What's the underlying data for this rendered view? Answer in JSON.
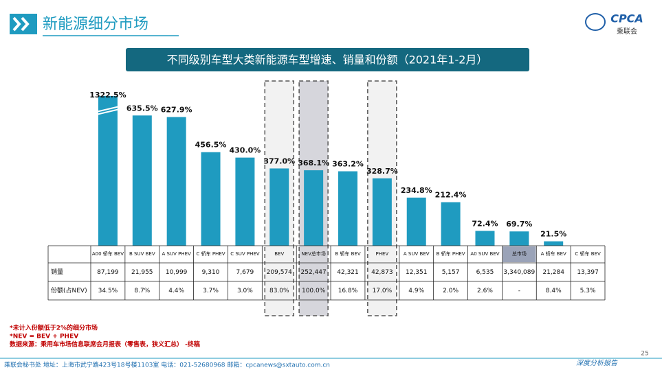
{
  "header": {
    "title": "新能源细分市场",
    "logo": "CPCA",
    "logo_sub": "乘联会"
  },
  "chart_data": {
    "type": "bar",
    "title": "不同级别车型大类新能源车型增速、销量和份额（2021年1-2月）",
    "categories": [
      "A00 轿车 BEV",
      "B SUV BEV",
      "A SUV PHEV",
      "C 轿车 PHEV",
      "C SUV PHEV",
      "BEV",
      "NEV总市场",
      "B 轿车 BEV",
      "PHEV",
      "A SUV BEV",
      "B 轿车 PHEV",
      "A0 SUV BEV",
      "总市场",
      "A 轿车 BEV",
      "C 轿车 BEV"
    ],
    "values": [
      1322.5,
      635.5,
      627.9,
      456.5,
      430.0,
      377.0,
      368.1,
      363.2,
      328.7,
      234.8,
      212.4,
      72.4,
      69.7,
      21.5,
      null
    ],
    "value_labels": [
      "1322.5%",
      "635.5%",
      "627.9%",
      "456.5%",
      "430.0%",
      "377.0%",
      "368.1%",
      "363.2%",
      "328.7%",
      "234.8%",
      "212.4%",
      "72.4%",
      "69.7%",
      "21.5%",
      null
    ],
    "color": "#1f9bc0",
    "ylim": [
      0,
      700
    ],
    "table": [
      {
        "label": "销量",
        "values": [
          87199,
          21955,
          10999,
          9310,
          7679,
          209574,
          252447,
          42321,
          42873,
          12351,
          5157,
          6535,
          3340089,
          21284,
          13397
        ],
        "value_labels": [
          "87,199",
          "21,955",
          "10,999",
          "9,310",
          "7,679",
          "209,574",
          "252,447",
          "42,321",
          "42,873",
          "12,351",
          "5,157",
          "6,535",
          "3,340,089",
          "21,284",
          "13,397"
        ]
      },
      {
        "label": "份额(占NEV)",
        "values": [
          34.5,
          8.7,
          4.4,
          3.7,
          3.0,
          83.0,
          100.0,
          16.8,
          17.0,
          4.9,
          2.0,
          2.6,
          null,
          8.4,
          5.3
        ],
        "value_labels": [
          "34.5%",
          "8.7%",
          "4.4%",
          "3.7%",
          "3.0%",
          "83.0%",
          "100.0%",
          "16.8%",
          "17.0%",
          "4.9%",
          "2.0%",
          "2.6%",
          "-",
          "8.4%",
          "5.3%"
        ]
      }
    ]
  },
  "notes": [
    "*未计入份额低于2%的细分市场",
    "*NEV = BEV + PHEV",
    "数据来源：乘用车市场信息联席会月报表（零售表，狭义汇总） -终稿"
  ],
  "footer": {
    "address": "乘联会秘书处   地址：上海市武宁路423号18号楼1103室   电话：021-52680968   邮箱：cpcanews@sxtauto.com.cn",
    "report": "深度分析报告",
    "page": "25"
  }
}
